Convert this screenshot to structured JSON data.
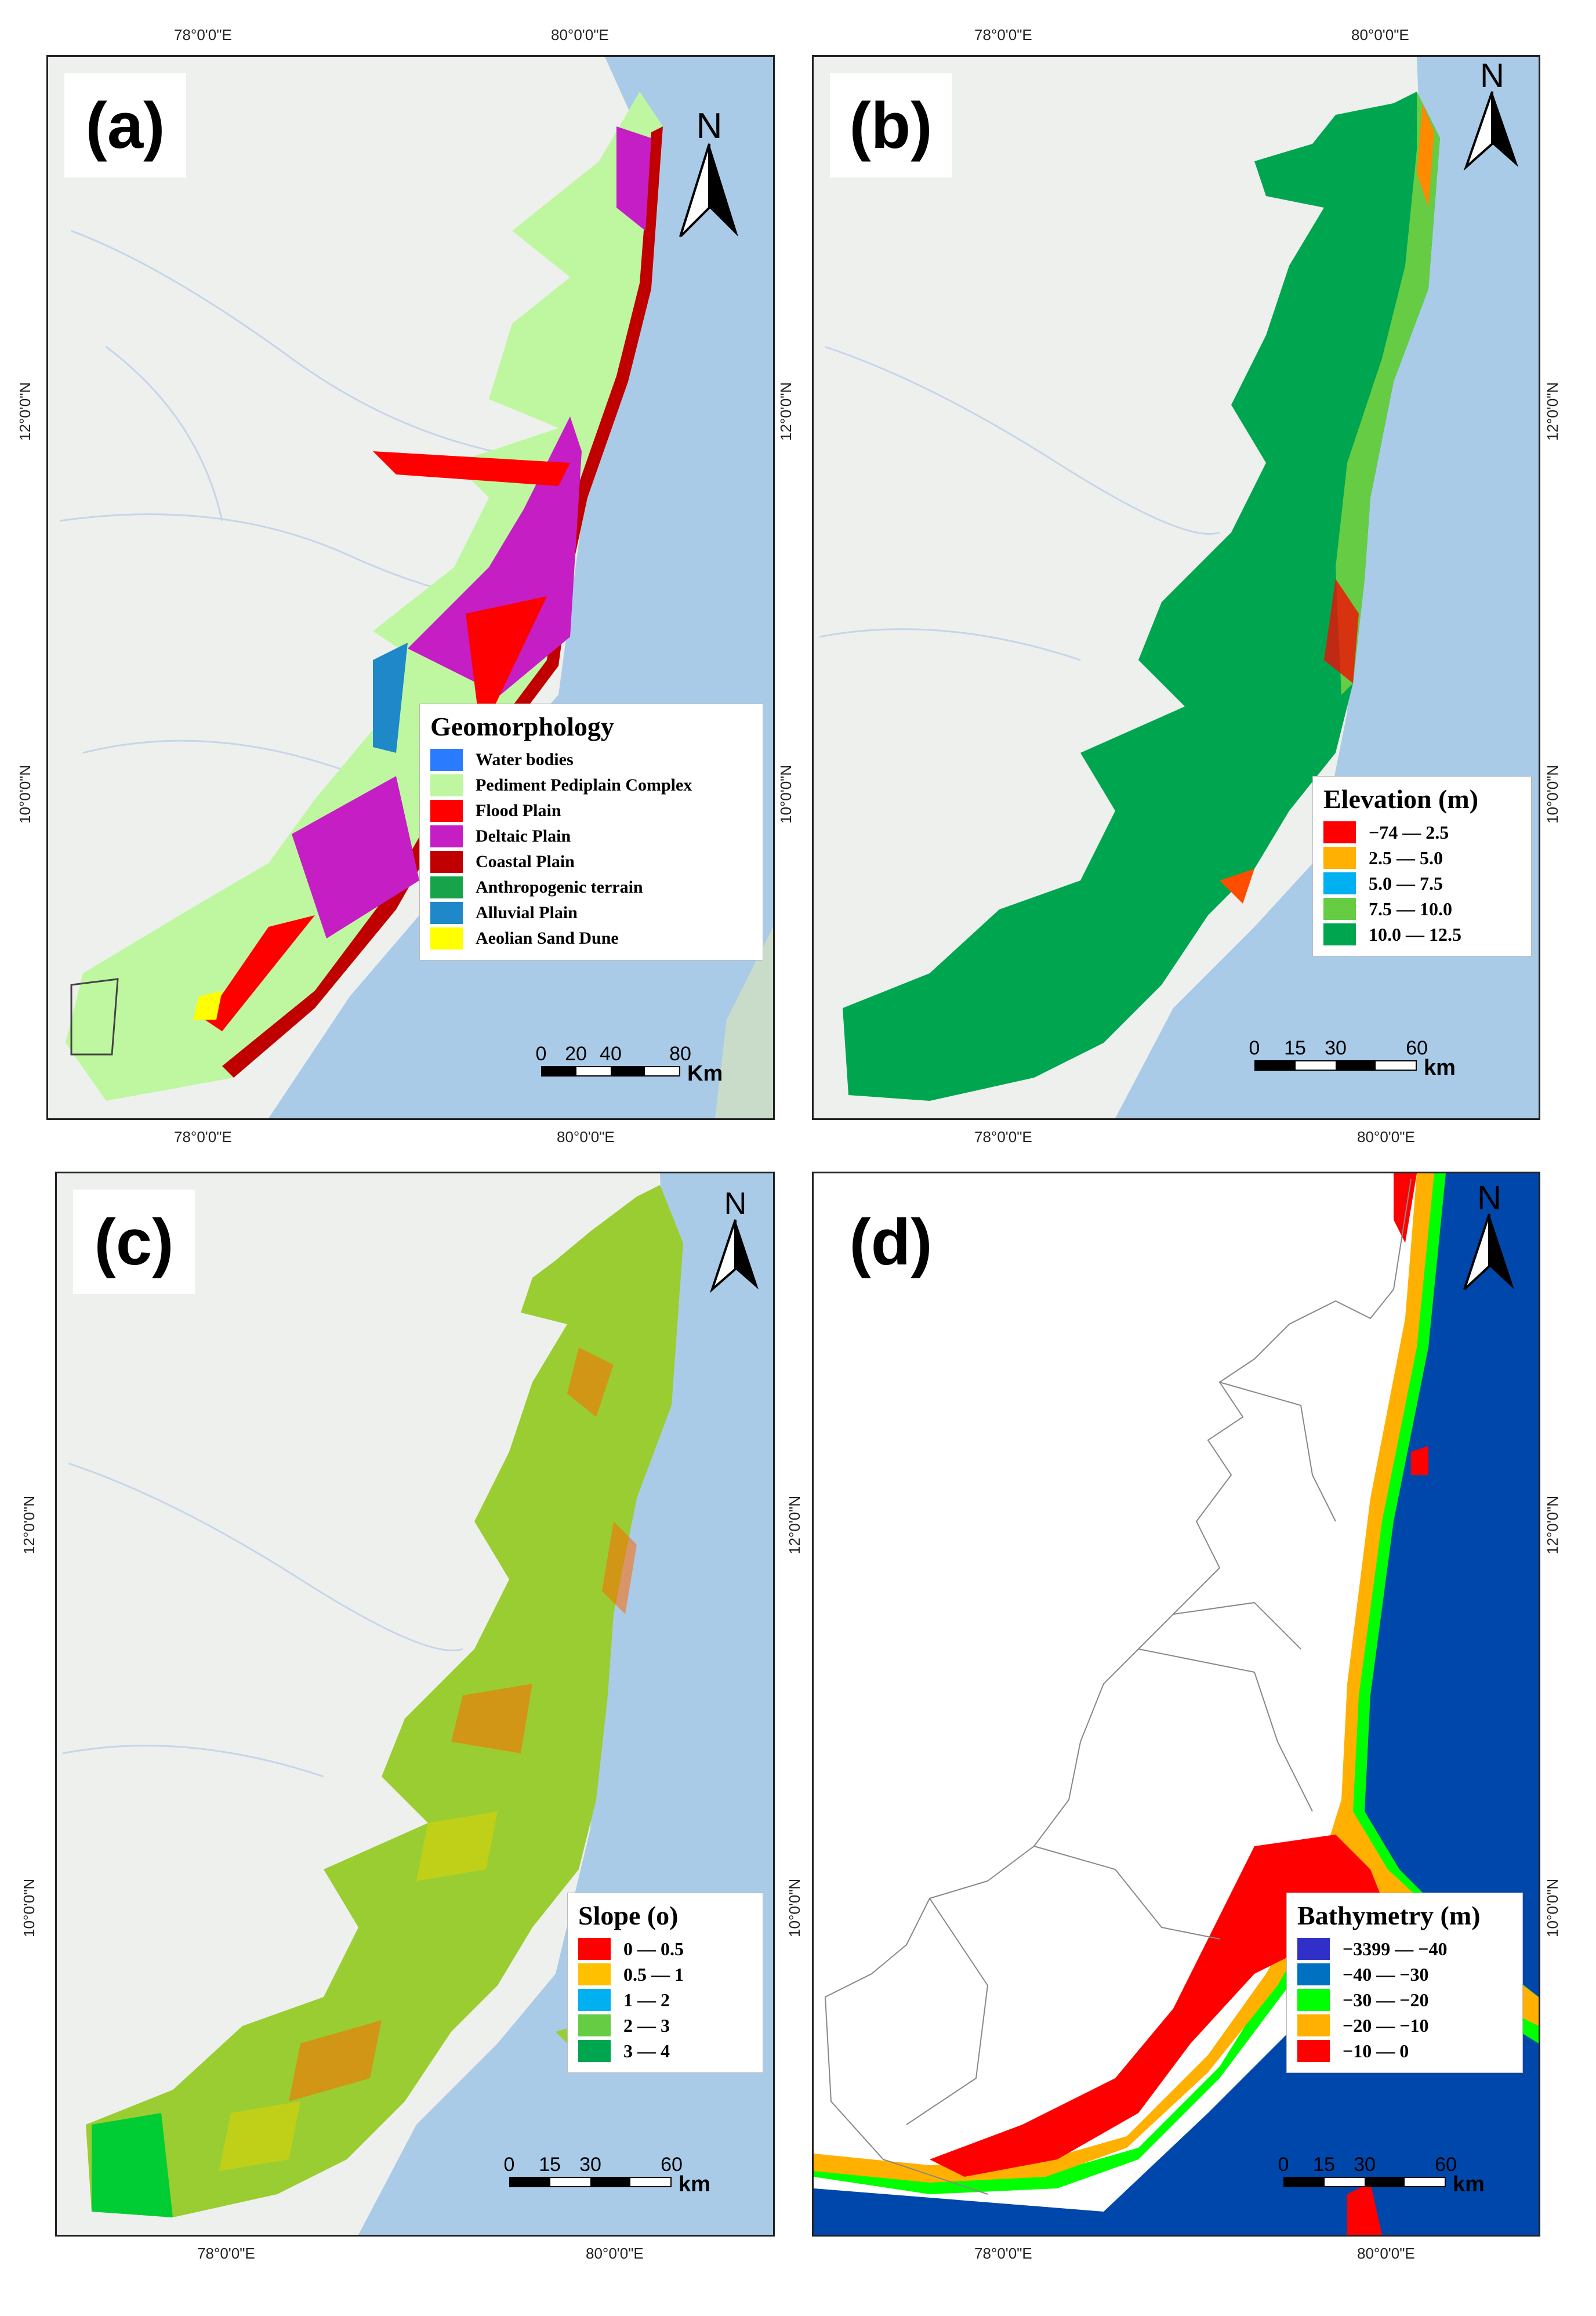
{
  "panels": [
    {
      "id": "a",
      "label": "(a)",
      "coords": {
        "top": [
          "78°0'0\"E",
          "80°0'0\"E"
        ],
        "bottom": [
          "78°0'0\"E",
          "80°0'0\"E"
        ],
        "left": [
          "12°0'0\"N",
          "10°0'0\"N"
        ],
        "right": [
          "12°0'0\"N",
          "10°0'0\"N"
        ]
      },
      "legend": {
        "title": "Geomorphology",
        "items": [
          {
            "label": "Water bodies",
            "color": "#2b7bff"
          },
          {
            "label": "Pediment Pediplain Complex",
            "color": "#bff7a0"
          },
          {
            "label": "Flood Plain",
            "color": "#ff0000"
          },
          {
            "label": "Deltaic Plain",
            "color": "#c41ec4"
          },
          {
            "label": "Coastal Plain",
            "color": "#c00000"
          },
          {
            "label": "Anthropogenic terrain",
            "color": "#16a34a"
          },
          {
            "label": "Alluvial Plain",
            "color": "#1e88c8"
          },
          {
            "label": "Aeolian Sand Dune",
            "color": "#ffff00"
          }
        ]
      },
      "scale": {
        "ticks": [
          "0",
          "20",
          "40",
          "80"
        ],
        "unit": "Km"
      },
      "north": "N"
    },
    {
      "id": "b",
      "label": "(b)",
      "coords": {
        "top": [
          "78°0'0\"E",
          "80°0'0\"E"
        ],
        "bottom": [
          "78°0'0\"E",
          "80°0'0\"E"
        ],
        "right": [
          "12°0'0\"N",
          "10°0'0\"N"
        ]
      },
      "legend": {
        "title": "Elevation (m)",
        "items": [
          {
            "label": "−74 — 2.5",
            "color": "#ff0000"
          },
          {
            "label": "2.5 — 5.0",
            "color": "#ffb000"
          },
          {
            "label": "5.0 — 7.5",
            "color": "#00b0f0"
          },
          {
            "label": "7.5 — 10.0",
            "color": "#66cc44"
          },
          {
            "label": "10.0 — 12.5",
            "color": "#00a64f"
          }
        ]
      },
      "scale": {
        "ticks": [
          "0",
          "15",
          "30",
          "60"
        ],
        "unit": "km"
      },
      "north": "N"
    },
    {
      "id": "c",
      "label": "(c)",
      "coords": {
        "bottom": [
          "78°0'0\"E",
          "80°0'0\"E"
        ],
        "left": [
          "12°0'0\"N",
          "10°0'0\"N"
        ]
      },
      "legend": {
        "title": "Slope (o)",
        "items": [
          {
            "label": "0 — 0.5",
            "color": "#ff0000"
          },
          {
            "label": "0.5 — 1",
            "color": "#ffc000"
          },
          {
            "label": "1 — 2",
            "color": "#00b0f0"
          },
          {
            "label": "2 — 3",
            "color": "#66cc44"
          },
          {
            "label": "3 — 4",
            "color": "#00a64f"
          }
        ]
      },
      "scale": {
        "ticks": [
          "0",
          "15",
          "30",
          "60"
        ],
        "unit": "km"
      },
      "north": "N"
    },
    {
      "id": "d",
      "label": "(d)",
      "coords": {
        "bottom": [
          "78°0'0\"E",
          "80°0'0\"E"
        ],
        "left": [
          "12°0'0\"N",
          "10°0'0\"N"
        ],
        "right": [
          "12°0'0\"N",
          "10°0'0\"N"
        ]
      },
      "legend": {
        "title": "Bathymetry (m)",
        "items": [
          {
            "label": "−3399 — −40",
            "color": "#3030c8"
          },
          {
            "label": "−40 — −30",
            "color": "#0070c0"
          },
          {
            "label": "−30 — −20",
            "color": "#00ff00"
          },
          {
            "label": "−20 — −10",
            "color": "#ffb000"
          },
          {
            "label": "−10 — 0",
            "color": "#ff0000"
          }
        ]
      },
      "scale": {
        "ticks": [
          "0",
          "15",
          "30",
          "60"
        ],
        "unit": "km"
      },
      "north": "N"
    }
  ],
  "colors": {
    "land_base": "#eef0ee",
    "sea": "#a9cbe8",
    "deep_sea": "#0047ab",
    "frame": "#222222"
  }
}
